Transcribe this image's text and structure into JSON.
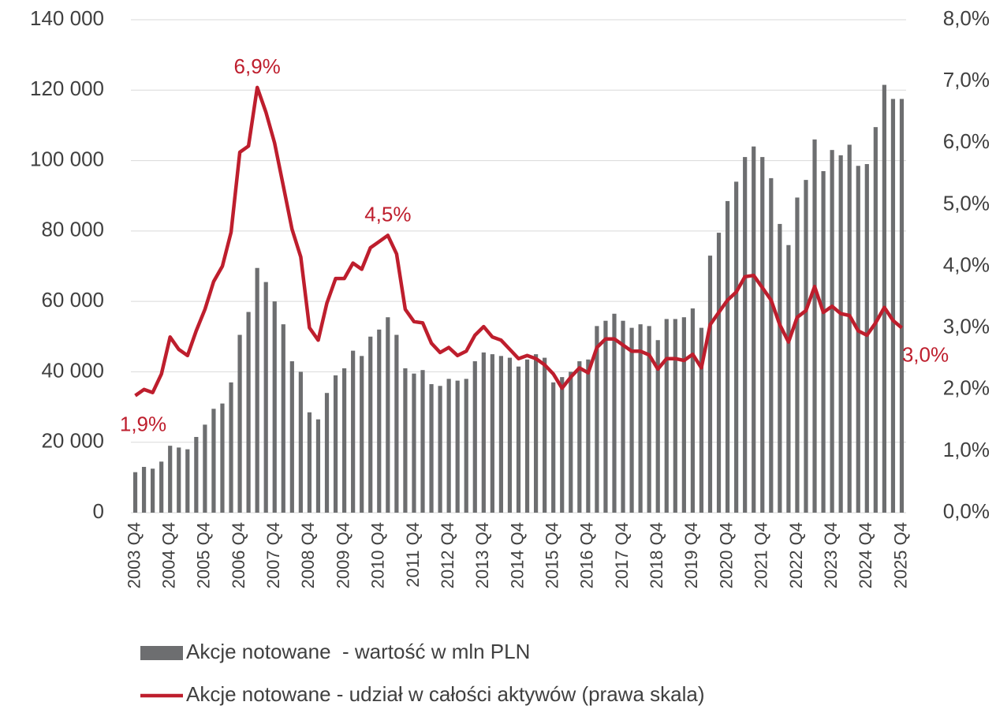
{
  "chart_data": {
    "type": "bar",
    "categories": [
      "2003 Q4",
      null,
      null,
      null,
      "2004 Q4",
      null,
      null,
      null,
      "2005 Q4",
      null,
      null,
      null,
      "2006 Q4",
      null,
      null,
      null,
      "2007 Q4",
      null,
      null,
      null,
      "2008 Q4",
      null,
      null,
      null,
      "2009 Q4",
      null,
      null,
      null,
      "2010 Q4",
      null,
      null,
      null,
      "2011 Q4",
      null,
      null,
      null,
      "2012 Q4",
      null,
      null,
      null,
      "2013 Q4",
      null,
      null,
      null,
      "2014 Q4",
      null,
      null,
      null,
      "2015 Q4",
      null,
      null,
      null,
      "2016 Q4",
      null,
      null,
      null,
      "2017 Q4",
      null,
      null,
      null,
      "2018 Q4",
      null,
      null,
      null,
      "2019 Q4",
      null,
      null,
      null,
      "2020 Q4",
      null,
      null,
      null,
      "2021 Q4",
      null,
      null,
      null,
      "2022 Q4",
      null,
      null,
      null,
      "2023 Q4",
      null,
      null,
      null,
      "2024 Q4",
      null,
      null,
      null,
      "2025 Q4"
    ],
    "series": [
      {
        "name": "Akcje notowane  - wartość w mln PLN",
        "type": "bar",
        "axis": "y",
        "color": "#6d6e70",
        "values": [
          11500,
          13000,
          12500,
          14500,
          19000,
          18500,
          18000,
          21500,
          25000,
          29500,
          31000,
          37000,
          50500,
          57000,
          69500,
          65500,
          60000,
          53500,
          43000,
          40000,
          28500,
          26500,
          34000,
          39000,
          41000,
          46000,
          44500,
          50000,
          52000,
          55500,
          50500,
          41000,
          39500,
          40500,
          36500,
          36000,
          38000,
          37500,
          38000,
          43000,
          45500,
          45000,
          44500,
          44000,
          41500,
          43500,
          45000,
          44000,
          37000,
          38500,
          40000,
          43000,
          43500,
          53000,
          54500,
          56500,
          54500,
          52500,
          53500,
          53000,
          49000,
          55000,
          55000,
          55500,
          58000,
          52500,
          73000,
          79500,
          88500,
          94000,
          101000,
          104000,
          101000,
          95000,
          82000,
          76000,
          89500,
          94500,
          106000,
          97000,
          103000,
          101500,
          104500,
          98500,
          99000,
          109500,
          121500,
          117500,
          117500
        ]
      },
      {
        "name": "Akcje notowane - udział w całości aktywów (prawa skala)",
        "type": "line",
        "axis": "y2",
        "color": "#be1e2d",
        "values": [
          1.9,
          2.0,
          1.95,
          2.25,
          2.85,
          2.65,
          2.55,
          2.95,
          3.3,
          3.75,
          4.0,
          4.55,
          5.85,
          5.95,
          6.9,
          6.5,
          6.0,
          5.3,
          4.6,
          4.15,
          3.0,
          2.8,
          3.4,
          3.8,
          3.8,
          4.05,
          3.95,
          4.3,
          4.4,
          4.5,
          4.2,
          3.3,
          3.1,
          3.08,
          2.75,
          2.6,
          2.68,
          2.55,
          2.62,
          2.88,
          3.02,
          2.85,
          2.8,
          2.65,
          2.5,
          2.55,
          2.5,
          2.4,
          2.25,
          2.02,
          2.2,
          2.35,
          2.27,
          2.68,
          2.82,
          2.82,
          2.72,
          2.62,
          2.62,
          2.56,
          2.33,
          2.5,
          2.5,
          2.47,
          2.57,
          2.35,
          3.05,
          3.25,
          3.45,
          3.58,
          3.83,
          3.85,
          3.65,
          3.45,
          3.05,
          2.77,
          3.17,
          3.28,
          3.67,
          3.25,
          3.35,
          3.23,
          3.2,
          2.95,
          2.88,
          3.08,
          3.33,
          3.12,
          3.0
        ],
        "value_labels": [
          "1,9%",
          null,
          null,
          null,
          null,
          null,
          null,
          null,
          null,
          null,
          null,
          null,
          null,
          null,
          "6,9%",
          null,
          null,
          null,
          null,
          null,
          null,
          null,
          null,
          null,
          null,
          null,
          null,
          null,
          null,
          "4,5%",
          null,
          null,
          null,
          null,
          null,
          null,
          null,
          null,
          null,
          null,
          null,
          null,
          null,
          null,
          null,
          null,
          null,
          null,
          null,
          null,
          null,
          null,
          null,
          null,
          null,
          null,
          null,
          null,
          null,
          null,
          null,
          null,
          null,
          null,
          null,
          null,
          null,
          null,
          null,
          null,
          null,
          null,
          null,
          null,
          null,
          null,
          null,
          null,
          null,
          null,
          null,
          null,
          null,
          null,
          null,
          null,
          null,
          null,
          "3,0%"
        ]
      }
    ],
    "ylim": [
      0,
      140000
    ],
    "yticks": [
      0,
      {
        "value": 20000,
        "label": "20 000"
      },
      {
        "value": 40000,
        "label": "40 000"
      },
      {
        "value": 60000,
        "label": "60 000"
      },
      {
        "value": 80000,
        "label": "80 000"
      },
      {
        "value": 100000,
        "label": "100 000"
      },
      {
        "value": 120000,
        "label": "120 000"
      },
      {
        "value": 140000,
        "label": "140 000"
      }
    ],
    "y2lim": [
      0,
      8
    ],
    "y2ticks": [
      {
        "value": 0,
        "label": "0,0%"
      },
      {
        "value": 1,
        "label": "1,0%"
      },
      {
        "value": 2,
        "label": "2,0%"
      },
      {
        "value": 3,
        "label": "3,0%"
      },
      {
        "value": 4,
        "label": "4,0%"
      },
      {
        "value": 5,
        "label": "5,0%"
      },
      {
        "value": 6,
        "label": "6,0%"
      },
      {
        "value": 7,
        "label": "7,0%"
      },
      {
        "value": 8,
        "label": "8,0%"
      }
    ],
    "grid": true,
    "legend": "bottom"
  }
}
